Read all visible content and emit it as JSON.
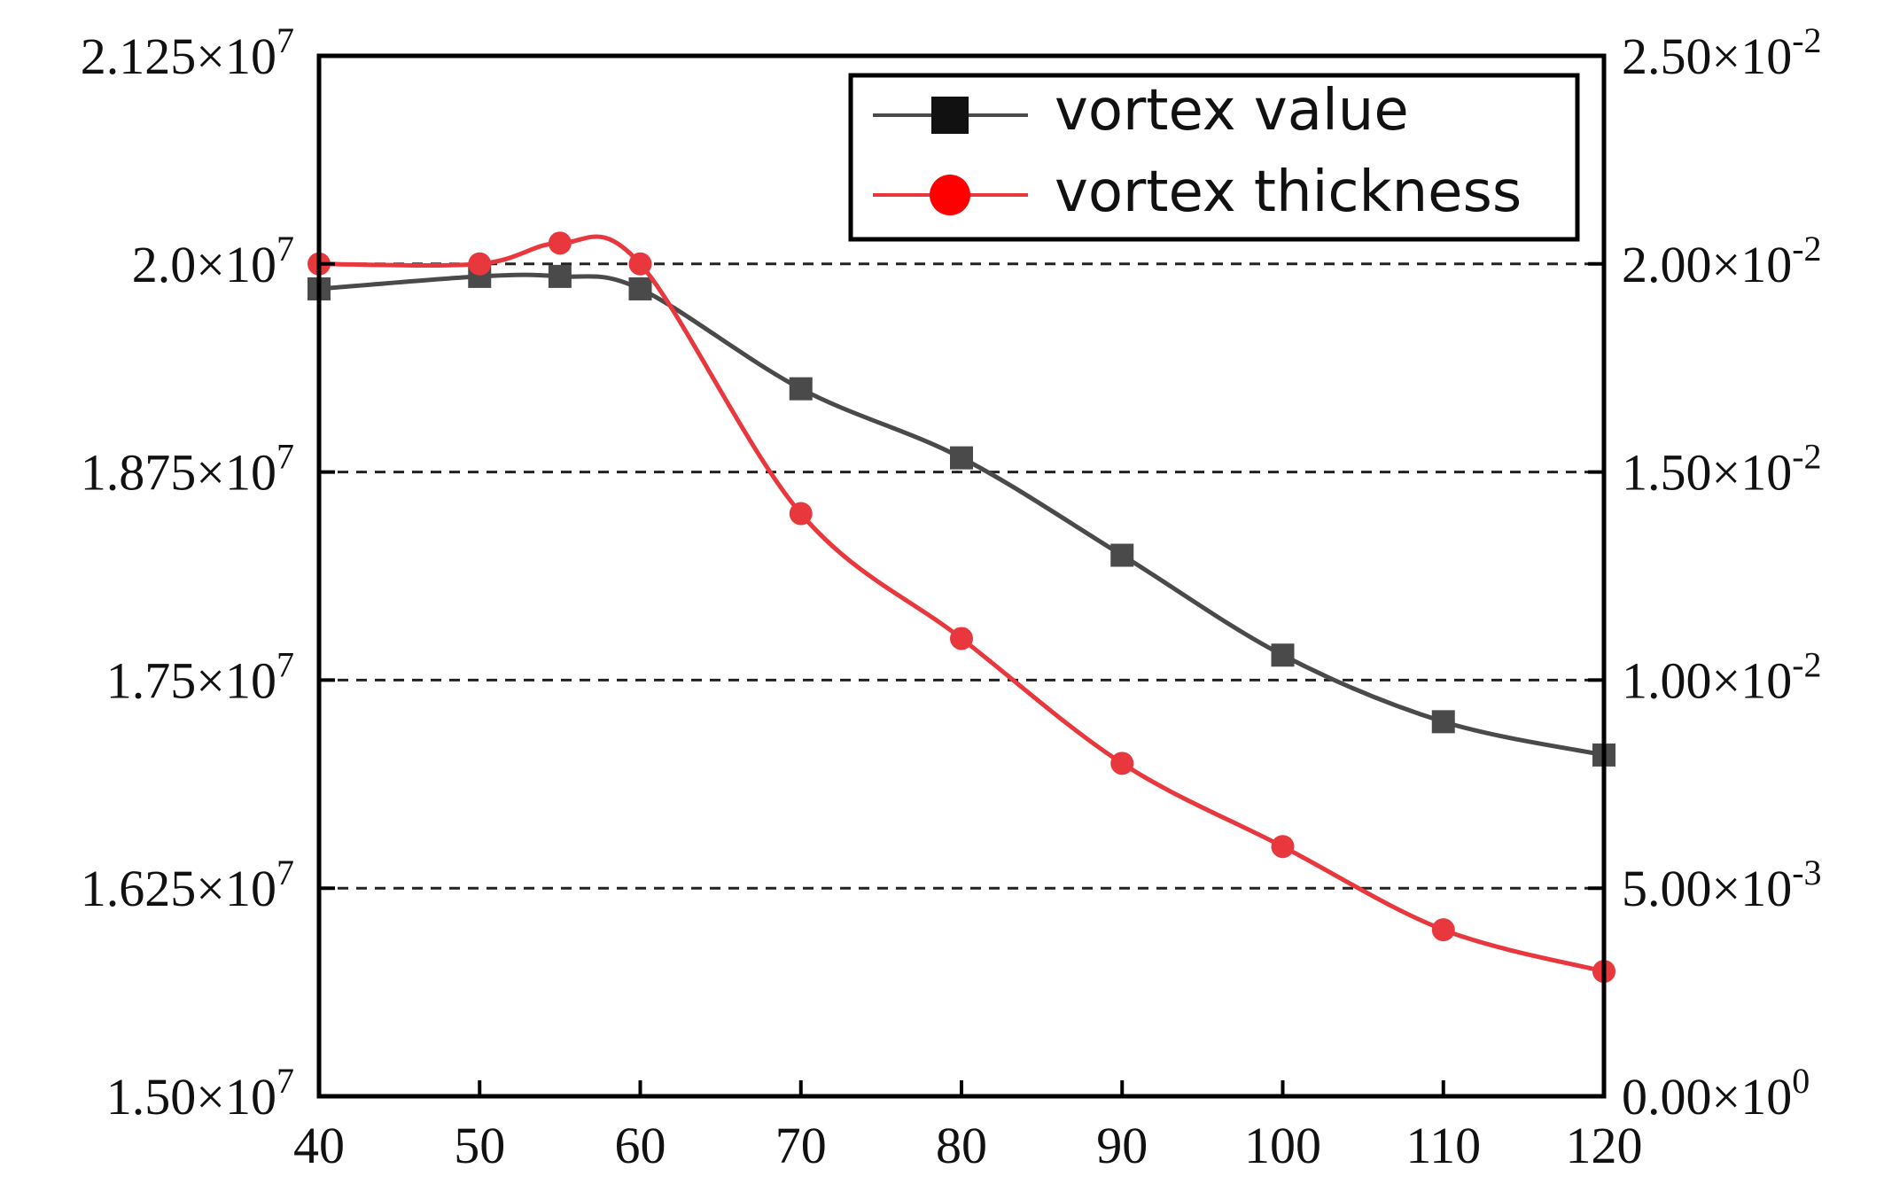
{
  "chart_data": {
    "type": "line",
    "x": [
      40,
      50,
      55,
      60,
      70,
      80,
      90,
      100,
      110,
      120
    ],
    "series": [
      {
        "name": "vortex value",
        "axis": "left",
        "marker": "square",
        "color": "#4a4a4a",
        "values": [
          19850000,
          19925000,
          19925000,
          19850000,
          19250000,
          18835000,
          18250000,
          17650000,
          17250000,
          17050000
        ]
      },
      {
        "name": "vortex thickness",
        "axis": "right",
        "marker": "circle",
        "color": "#e8383d",
        "values": [
          0.02,
          0.02,
          0.0205,
          0.02,
          0.014,
          0.011,
          0.008,
          0.006,
          0.004,
          0.003
        ]
      }
    ],
    "y_left": {
      "ylim": [
        15000000,
        21250000
      ],
      "ticks": [
        15000000,
        16250000,
        17500000,
        18750000,
        20000000,
        21250000
      ],
      "tick_labels": [
        {
          "mantissa": "1.50",
          "exp": "7"
        },
        {
          "mantissa": "1.625",
          "exp": "7"
        },
        {
          "mantissa": "1.75",
          "exp": "7"
        },
        {
          "mantissa": "1.875",
          "exp": "7"
        },
        {
          "mantissa": "2.0",
          "exp": "7"
        },
        {
          "mantissa": "2.125",
          "exp": "7"
        }
      ]
    },
    "y_right": {
      "ylim": [
        0,
        0.025
      ],
      "ticks": [
        0,
        0.005,
        0.01,
        0.015,
        0.02,
        0.025
      ],
      "tick_labels": [
        {
          "mantissa": "0.00",
          "exp": "0"
        },
        {
          "mantissa": "5.00",
          "exp": "-3"
        },
        {
          "mantissa": "1.00",
          "exp": "-2"
        },
        {
          "mantissa": "1.50",
          "exp": "-2"
        },
        {
          "mantissa": "2.00",
          "exp": "-2"
        },
        {
          "mantissa": "2.50",
          "exp": "-2"
        }
      ]
    },
    "x_axis": {
      "xlim": [
        40,
        120
      ],
      "ticks": [
        40,
        50,
        60,
        70,
        80,
        90,
        100,
        110,
        120
      ],
      "tick_labels": [
        "40",
        "50",
        "60",
        "70",
        "80",
        "90",
        "100",
        "110",
        "120"
      ]
    },
    "gridlines": {
      "axis": "y",
      "values": [
        16250000,
        17500000,
        18750000,
        20000000
      ],
      "style": "dashed"
    },
    "legend": {
      "placement": "top-right",
      "items": [
        "vortex value",
        "vortex thickness"
      ]
    }
  }
}
